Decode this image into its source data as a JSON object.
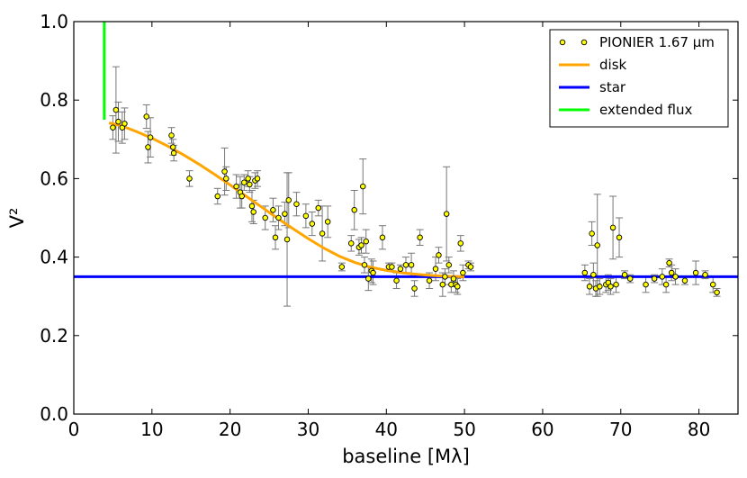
{
  "chart_data": {
    "type": "scatter",
    "xlabel": "baseline [Mλ]",
    "ylabel": "V²",
    "xlim": [
      0,
      85
    ],
    "ylim": [
      0,
      1.0
    ],
    "xticks": [
      "0",
      "10",
      "20",
      "30",
      "40",
      "50",
      "60",
      "70",
      "80"
    ],
    "yticks": [
      "0.0",
      "0.2",
      "0.4",
      "0.6",
      "0.8",
      "1.0"
    ],
    "grid": false,
    "legend_position": "top-right",
    "colors": {
      "points": "#ffff00",
      "errorbar": "#777777",
      "disk": "#ffa500",
      "star": "#0000ff",
      "extended": "#00ff00"
    },
    "legend": [
      {
        "label": "PIONIER 1.67 µm",
        "kind": "marker"
      },
      {
        "label": "disk",
        "kind": "line",
        "color": "#ffa500"
      },
      {
        "label": "star",
        "kind": "line",
        "color": "#0000ff"
      },
      {
        "label": "extended flux",
        "kind": "line",
        "color": "#00ff00"
      }
    ],
    "series": [
      {
        "name": "PIONIER 1.67 µm",
        "type": "errorbar",
        "points": [
          [
            5.0,
            0.73,
            0.03
          ],
          [
            5.4,
            0.775,
            0.11
          ],
          [
            5.7,
            0.745,
            0.05
          ],
          [
            6.2,
            0.73,
            0.04
          ],
          [
            6.5,
            0.74,
            0.04
          ],
          [
            9.3,
            0.758,
            0.03
          ],
          [
            9.5,
            0.68,
            0.04
          ],
          [
            9.8,
            0.705,
            0.05
          ],
          [
            12.5,
            0.71,
            0.02
          ],
          [
            12.7,
            0.68,
            0.02
          ],
          [
            12.8,
            0.665,
            0.02
          ],
          [
            14.8,
            0.6,
            0.02
          ],
          [
            18.4,
            0.555,
            0.02
          ],
          [
            19.3,
            0.618,
            0.06
          ],
          [
            19.5,
            0.6,
            0.03
          ],
          [
            20.8,
            0.58,
            0.03
          ],
          [
            21.3,
            0.565,
            0.04
          ],
          [
            21.5,
            0.555,
            0.03
          ],
          [
            21.8,
            0.59,
            0.02
          ],
          [
            22.3,
            0.6,
            0.02
          ],
          [
            22.5,
            0.585,
            0.02
          ],
          [
            22.8,
            0.53,
            0.04
          ],
          [
            23.0,
            0.515,
            0.03
          ],
          [
            23.2,
            0.595,
            0.02
          ],
          [
            23.5,
            0.6,
            0.02
          ],
          [
            24.5,
            0.5,
            0.03
          ],
          [
            25.5,
            0.52,
            0.03
          ],
          [
            25.8,
            0.45,
            0.03
          ],
          [
            26.2,
            0.5,
            0.03
          ],
          [
            27.0,
            0.51,
            0.03
          ],
          [
            27.3,
            0.445,
            0.17
          ],
          [
            27.5,
            0.545,
            0.07
          ],
          [
            28.5,
            0.535,
            0.03
          ],
          [
            29.7,
            0.505,
            0.03
          ],
          [
            30.5,
            0.485,
            0.03
          ],
          [
            31.3,
            0.525,
            0.02
          ],
          [
            31.8,
            0.46,
            0.07
          ],
          [
            32.5,
            0.49,
            0.04
          ],
          [
            34.3,
            0.375,
            0.01
          ],
          [
            35.5,
            0.435,
            0.02
          ],
          [
            35.9,
            0.52,
            0.05
          ],
          [
            36.5,
            0.425,
            0.02
          ],
          [
            36.8,
            0.43,
            0.02
          ],
          [
            37.0,
            0.58,
            0.07
          ],
          [
            37.2,
            0.38,
            0.02
          ],
          [
            37.4,
            0.44,
            0.03
          ],
          [
            37.7,
            0.345,
            0.03
          ],
          [
            38.1,
            0.365,
            0.03
          ],
          [
            38.3,
            0.36,
            0.03
          ],
          [
            39.5,
            0.45,
            0.03
          ],
          [
            40.3,
            0.375,
            0.01
          ],
          [
            40.7,
            0.375,
            0.01
          ],
          [
            41.3,
            0.34,
            0.02
          ],
          [
            41.8,
            0.37,
            0.01
          ],
          [
            42.5,
            0.38,
            0.02
          ],
          [
            43.2,
            0.38,
            0.03
          ],
          [
            43.6,
            0.32,
            0.02
          ],
          [
            44.3,
            0.45,
            0.02
          ],
          [
            45.5,
            0.34,
            0.02
          ],
          [
            46.3,
            0.37,
            0.03
          ],
          [
            46.7,
            0.405,
            0.02
          ],
          [
            47.2,
            0.33,
            0.03
          ],
          [
            47.5,
            0.35,
            0.02
          ],
          [
            47.7,
            0.51,
            0.12
          ],
          [
            48.0,
            0.38,
            0.02
          ],
          [
            48.3,
            0.33,
            0.02
          ],
          [
            48.6,
            0.345,
            0.02
          ],
          [
            48.9,
            0.33,
            0.02
          ],
          [
            49.1,
            0.325,
            0.02
          ],
          [
            49.5,
            0.435,
            0.02
          ],
          [
            49.8,
            0.36,
            0.02
          ],
          [
            50.5,
            0.38,
            0.01
          ],
          [
            50.8,
            0.375,
            0.01
          ],
          [
            65.4,
            0.36,
            0.02
          ],
          [
            66.0,
            0.325,
            0.02
          ],
          [
            66.3,
            0.46,
            0.03
          ],
          [
            66.5,
            0.355,
            0.03
          ],
          [
            66.8,
            0.32,
            0.02
          ],
          [
            67.0,
            0.43,
            0.13
          ],
          [
            67.3,
            0.325,
            0.02
          ],
          [
            68.1,
            0.33,
            0.02
          ],
          [
            68.4,
            0.335,
            0.02
          ],
          [
            68.7,
            0.325,
            0.02
          ],
          [
            69.0,
            0.475,
            0.08
          ],
          [
            69.4,
            0.33,
            0.02
          ],
          [
            69.8,
            0.45,
            0.05
          ],
          [
            70.5,
            0.355,
            0.01
          ],
          [
            71.2,
            0.345,
            0.01
          ],
          [
            73.2,
            0.33,
            0.02
          ],
          [
            74.3,
            0.345,
            0.01
          ],
          [
            75.3,
            0.35,
            0.02
          ],
          [
            75.8,
            0.33,
            0.02
          ],
          [
            76.2,
            0.385,
            0.01
          ],
          [
            76.5,
            0.36,
            0.02
          ],
          [
            77.0,
            0.35,
            0.02
          ],
          [
            78.2,
            0.34,
            0.01
          ],
          [
            79.6,
            0.36,
            0.03
          ],
          [
            80.8,
            0.355,
            0.01
          ],
          [
            81.8,
            0.33,
            0.02
          ],
          [
            82.3,
            0.31,
            0.01
          ]
        ]
      },
      {
        "name": "disk",
        "type": "line",
        "x": [
          4.5,
          6,
          8,
          10,
          12,
          14,
          16,
          18,
          20,
          22,
          24,
          26,
          28,
          30,
          32,
          34,
          36,
          38,
          40,
          42,
          44,
          46,
          48,
          50
        ],
        "y": [
          0.742,
          0.735,
          0.72,
          0.703,
          0.683,
          0.661,
          0.637,
          0.611,
          0.584,
          0.556,
          0.528,
          0.5,
          0.473,
          0.447,
          0.423,
          0.402,
          0.386,
          0.374,
          0.366,
          0.36,
          0.356,
          0.353,
          0.351,
          0.35
        ]
      },
      {
        "name": "star",
        "type": "hline",
        "y": 0.35,
        "x": [
          0,
          85
        ]
      },
      {
        "name": "extended flux",
        "type": "vline",
        "x": 3.9,
        "y": [
          0.75,
          1.0
        ]
      }
    ]
  }
}
